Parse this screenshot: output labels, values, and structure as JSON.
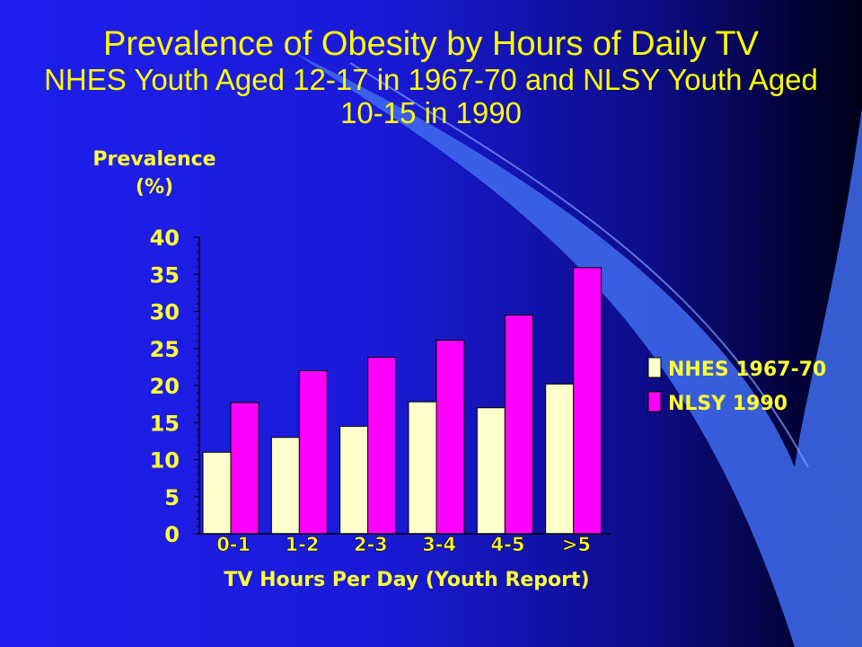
{
  "slide": {
    "title_line1": "Prevalence of Obesity by Hours of Daily TV",
    "title_line2": "NHES Youth Aged 12-17 in 1967-70 and NLSY Youth Aged 10-15 in 1990"
  },
  "colors": {
    "background": "#1a1ad6",
    "title": "#ffff00",
    "axis_text": "#ffff33",
    "series_nhes": "#ffffcc",
    "series_nlsy": "#ff00ff",
    "swoosh": "#3f6cf0"
  },
  "chart_data": {
    "type": "bar",
    "title": "Prevalence of Obesity by Hours of Daily TV",
    "subtitle": "NHES Youth Aged 12-17 in 1967-70 and NLSY Youth Aged 10-15 in 1990",
    "ylabel_line1": "Prevalence",
    "ylabel_line2": "(%)",
    "xlabel": "TV Hours Per Day (Youth Report)",
    "categories": [
      "0-1",
      "1-2",
      "2-3",
      "3-4",
      "4-5",
      ">5"
    ],
    "series": [
      {
        "name": "NHES 1967-70",
        "values": [
          11,
          13,
          14.5,
          17.8,
          17,
          20.2
        ]
      },
      {
        "name": "NLSY 1990",
        "values": [
          17.7,
          22,
          23.8,
          26.1,
          29.5,
          35.9
        ]
      }
    ],
    "ylim": [
      0,
      40
    ],
    "yticks": [
      0,
      5,
      10,
      15,
      20,
      25,
      30,
      35,
      40
    ],
    "grid": false,
    "legend": "right"
  }
}
